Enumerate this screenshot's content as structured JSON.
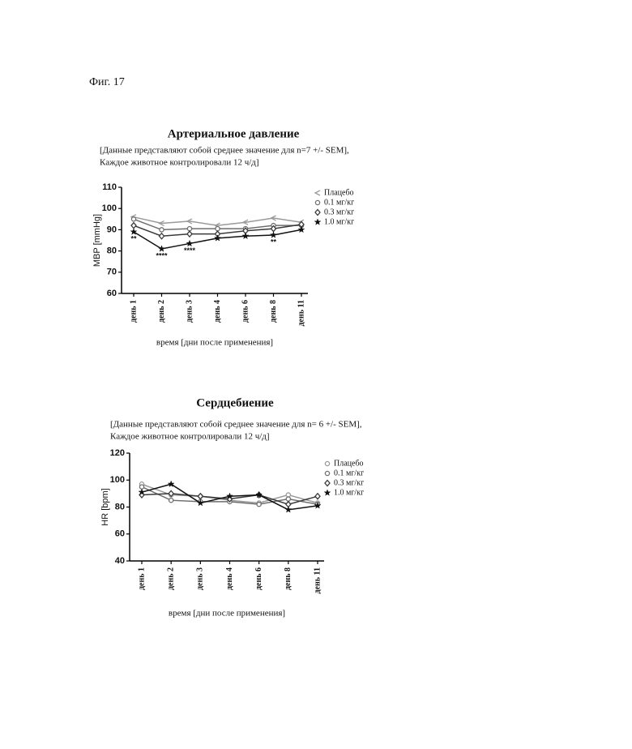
{
  "figure_label": "Фиг. 17",
  "chart_data": [
    {
      "type": "line",
      "title": "Артериальное давление",
      "subtitle": [
        "[Данные представляют собой среднее значение для n=7 +/- SEM],",
        "Каждое животное контролировали 12 ч/д]"
      ],
      "y_label": "MBP [mmHg]",
      "x_label": "время [дни после применения]",
      "categories": [
        "день 1",
        "день 2",
        "день 3",
        "день 4",
        "день 6",
        "день 8",
        "день 11"
      ],
      "ylim": [
        60,
        110
      ],
      "yticks": [
        60,
        70,
        80,
        90,
        100,
        110
      ],
      "series": [
        {
          "name": "Плацебо",
          "color": "#9a9a9a",
          "marker": "triangle",
          "values": [
            96,
            93,
            94,
            92,
            93.5,
            95.5,
            93.5
          ]
        },
        {
          "name": "0.1 мг/кг",
          "color": "#6e6e6e",
          "marker": "circle",
          "values": [
            95,
            90,
            90.5,
            90.5,
            90.5,
            92,
            92
          ]
        },
        {
          "name": "0.3 мг/кг",
          "color": "#3a3a3a",
          "marker": "diamond",
          "values": [
            92,
            87,
            88,
            88,
            89.5,
            90.5,
            92.5
          ]
        },
        {
          "name": "1.0 мг/кг",
          "color": "#111111",
          "marker": "star",
          "values": [
            89,
            81,
            83.5,
            86,
            87,
            87.5,
            90
          ]
        }
      ],
      "annotations": [
        "**",
        "****",
        "****",
        null,
        null,
        "**",
        null
      ],
      "legend": "upper right"
    },
    {
      "type": "line",
      "title": "Сердцебиение",
      "subtitle": [
        "[Данные представляют собой среднее значение для n= 6 +/- SEM],",
        "Каждое животное контролировали 12 ч/д]"
      ],
      "y_label": "HR [bpm]",
      "x_label": "время [дни после применения]",
      "categories": [
        "день 1",
        "день 2",
        "день 3",
        "день 4",
        "день 6",
        "день 8",
        "день 11"
      ],
      "ylim": [
        40,
        120
      ],
      "yticks": [
        40,
        60,
        80,
        100,
        120
      ],
      "series": [
        {
          "name": "Плацебо",
          "color": "#9a9a9a",
          "marker": "circle",
          "values": [
            97,
            89,
            88,
            85,
            83,
            89,
            83
          ]
        },
        {
          "name": "0.1 мг/кг",
          "color": "#6e6e6e",
          "marker": "circle",
          "values": [
            95,
            85,
            84,
            84,
            82,
            86,
            82
          ]
        },
        {
          "name": "0.3 мг/кг",
          "color": "#3a3a3a",
          "marker": "diamond",
          "values": [
            89,
            90,
            88,
            86,
            89,
            82,
            88
          ]
        },
        {
          "name": "1.0 мг/кг",
          "color": "#111111",
          "marker": "star",
          "values": [
            91,
            97,
            83,
            88,
            89,
            78,
            81
          ]
        }
      ],
      "legend": "upper right"
    }
  ]
}
